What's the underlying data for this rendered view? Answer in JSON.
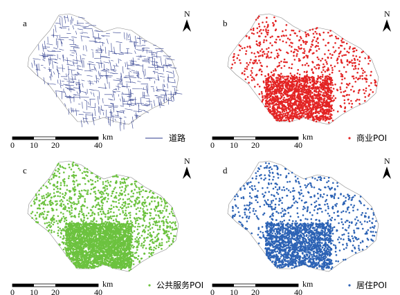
{
  "north": "N",
  "scale": {
    "ticks": [
      "0",
      "10",
      "20",
      "40"
    ],
    "unit": "km"
  },
  "panels": [
    {
      "label": "a",
      "legend": "道路"
    },
    {
      "label": "b",
      "legend": "商业POI"
    },
    {
      "label": "c",
      "legend": "公共服务POI"
    },
    {
      "label": "d",
      "legend": "居住POI"
    }
  ]
}
